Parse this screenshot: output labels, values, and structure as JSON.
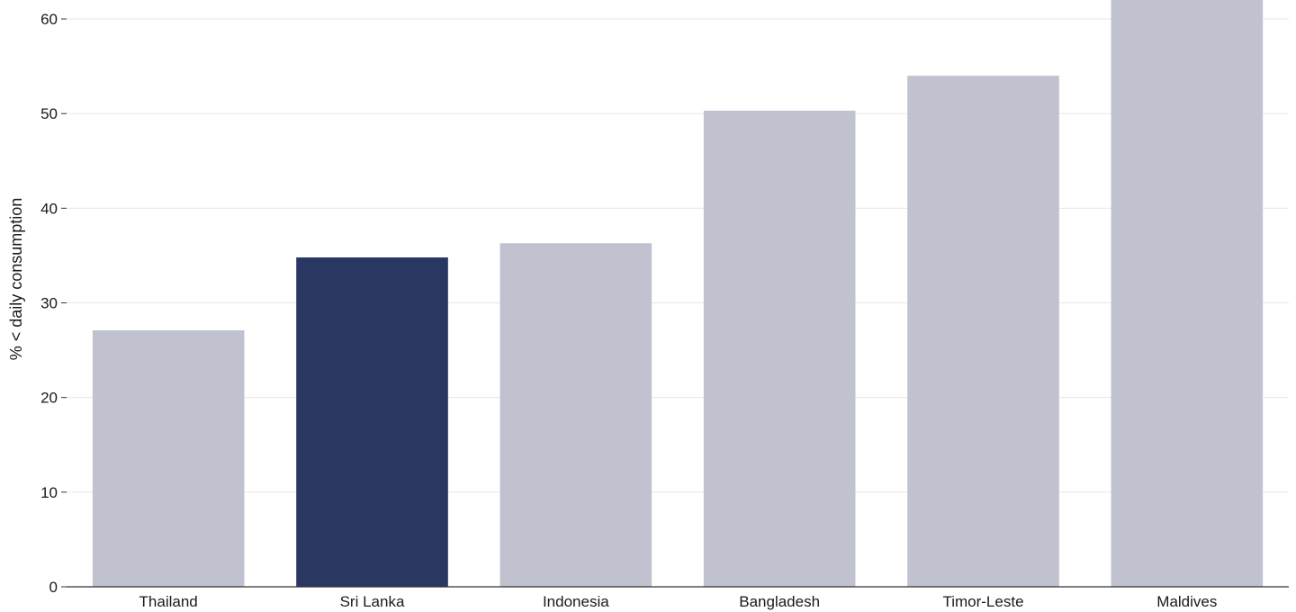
{
  "chart_data": {
    "type": "bar",
    "title": "",
    "xlabel": "",
    "ylabel": "% < daily consumption",
    "categories": [
      "Thailand",
      "Sri Lanka",
      "Indonesia",
      "Bangladesh",
      "Timor-Leste",
      "Maldives"
    ],
    "values": [
      27.1,
      34.8,
      36.3,
      50.3,
      54.0,
      62.5
    ],
    "highlight": "Sri Lanka",
    "ylim": [
      0,
      62
    ],
    "yticks": [
      0,
      10,
      20,
      30,
      40,
      50,
      60
    ],
    "grid": true,
    "legend": "none",
    "colors": {
      "bar": "#c0c3cf",
      "highlight_bar": "#2b3763",
      "grid": "#e6e6e6",
      "axis": "#333333",
      "text": "#1a1a1a"
    }
  }
}
